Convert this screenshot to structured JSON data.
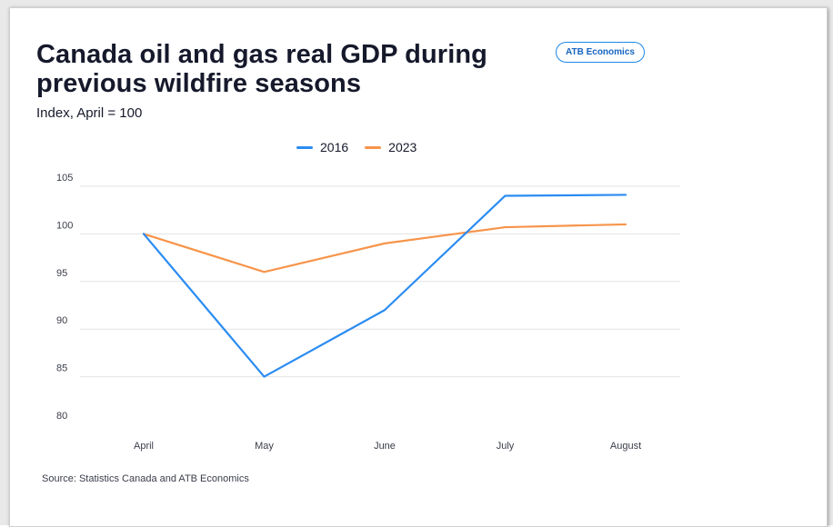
{
  "header": {
    "title": "Canada oil and gas real GDP during previous wildfire seasons",
    "subtitle": "Index, April = 100",
    "brand": "ATB Economics"
  },
  "footer": {
    "source": "Source: Statistics Canada and ATB Economics"
  },
  "colors": {
    "series_2016": "#2b8cf2",
    "series_2023": "#f7944a",
    "gridline": "#e2e2e2"
  },
  "chart_data": {
    "type": "line",
    "title": "Canada oil and gas real GDP during previous wildfire seasons",
    "subtitle": "Index, April = 100",
    "xlabel": "",
    "ylabel": "",
    "categories": [
      "April",
      "May",
      "June",
      "July",
      "August"
    ],
    "series": [
      {
        "name": "2016",
        "color": "#2b8cf2",
        "values": [
          100,
          85,
          92,
          104,
          104.1
        ]
      },
      {
        "name": "2023",
        "color": "#f7944a",
        "values": [
          100,
          96,
          99,
          100.7,
          101
        ]
      }
    ],
    "ylim": [
      80,
      105
    ],
    "yticks": [
      80,
      85,
      90,
      95,
      100,
      105
    ],
    "grid": true,
    "legend_position": "top-center"
  }
}
